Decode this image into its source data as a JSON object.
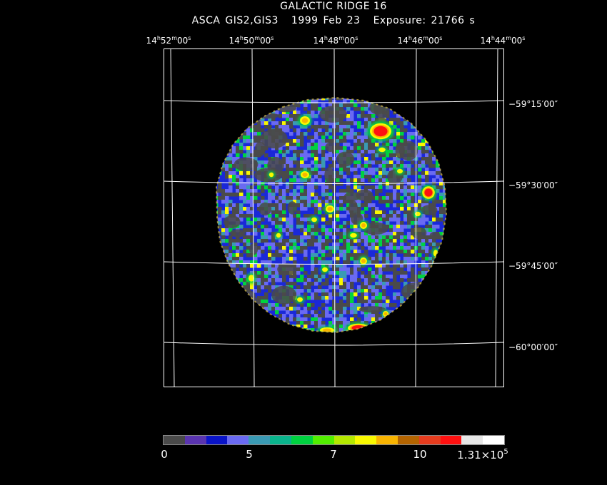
{
  "header": {
    "title": "GALACTIC RIDGE 16",
    "instrument": "ASCA GIS2,GIS3",
    "date": "1999 Feb 23",
    "exposure": "Exposure: 21766 s"
  },
  "ra_axis": [
    {
      "h": "14",
      "m": "52",
      "s": "00"
    },
    {
      "h": "14",
      "m": "50",
      "s": "00"
    },
    {
      "h": "14",
      "m": "48",
      "s": "00"
    },
    {
      "h": "14",
      "m": "46",
      "s": "00"
    },
    {
      "h": "14",
      "m": "44",
      "s": "00"
    }
  ],
  "dec_axis": [
    "−59°15′00″",
    "−59°30′00″",
    "−59°45′00″",
    "−60°00′00″"
  ],
  "colorbar": {
    "colors": [
      "#4a4a4a",
      "#5a34b0",
      "#0a14c8",
      "#6a6af2",
      "#3a9ab4",
      "#0ab48c",
      "#00d240",
      "#52ee00",
      "#b4e800",
      "#f8f800",
      "#f8b400",
      "#b46400",
      "#e63c1e",
      "#ff1010",
      "#e6e6e6",
      "#ffffff"
    ],
    "labels": {
      "zero": "0",
      "five": "5",
      "seven": "7",
      "ten": "10",
      "max_mantissa": "1.31×10",
      "max_exponent": "5"
    }
  },
  "image": {
    "palette": {
      "gray": "#4a4a4a",
      "blue": "#1a28d8",
      "lightblue": "#6a6af2",
      "teal": "#3a9ab4",
      "green": "#00d240",
      "yellow": "#f8f800",
      "orange": "#f8b400",
      "red": "#ff1010"
    }
  }
}
